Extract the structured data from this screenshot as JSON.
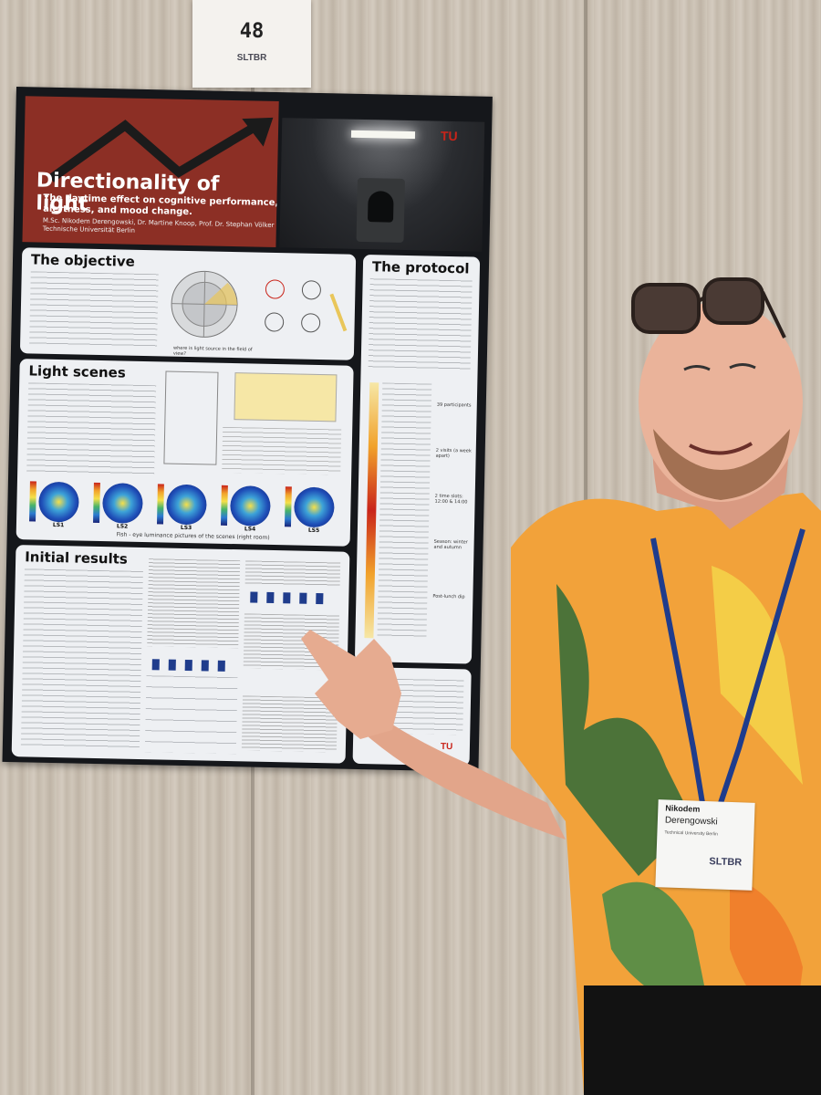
{
  "board_number": "48",
  "board_logo": "SLTBR",
  "poster": {
    "title": "Directionality of light",
    "subtitle": "The daytime effect on cognitive performance, alertness, and mood change.",
    "authors": "M.Sc. Nikodem Derengowski, Dr. Martine Knoop, Prof. Dr. Stephan Völker",
    "institution": "Technische Universität Berlin",
    "sections": {
      "objective": "The objective",
      "light_scenes": "Light scenes",
      "initial_results": "Initial results",
      "protocol": "The protocol"
    },
    "objective_caption": "where is light source in the field of view?",
    "scenes_caption": "Fish - eye luminance pictures of the scenes (right room)",
    "scene_labels": [
      "LS1",
      "LS2",
      "LS3",
      "LS4",
      "LS5"
    ],
    "protocol_side_labels": [
      "39 participants",
      "2 visits (a week apart)",
      "2 time slots: 12:00 & 14:00",
      "Season: winter and autumn",
      "Post-lunch dip"
    ]
  },
  "name_badge": {
    "first_name": "Nikodem",
    "last_name": "Derengowski",
    "affiliation": "Technical University Berlin",
    "organization": "SLTBR"
  },
  "colors": {
    "poster_red": "#8c2f25",
    "poster_dark": "#15171b",
    "panel": "#eef0f3",
    "shirt_orange": "#f2a23a",
    "lanyard": "#1f3c8c"
  }
}
